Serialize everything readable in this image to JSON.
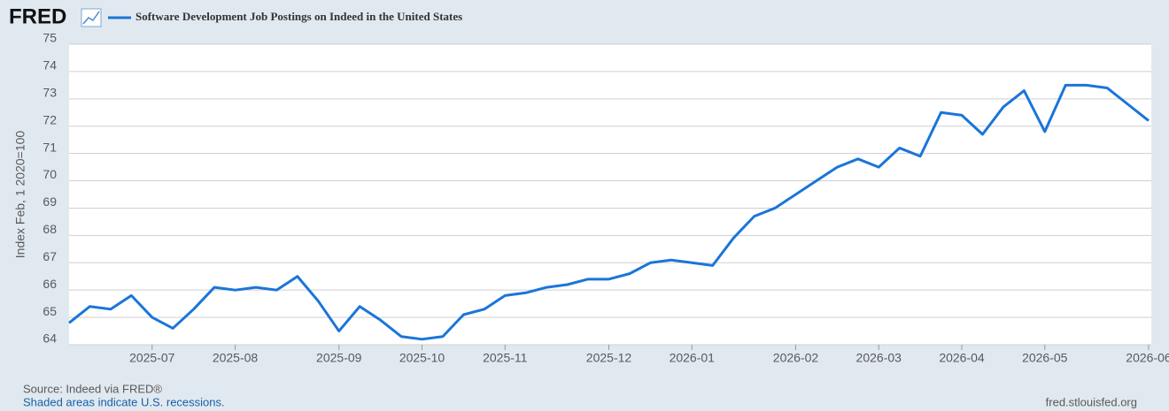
{
  "chart_data": {
    "type": "line",
    "logo": "FRED",
    "ylabel": "Index Feb, 1 2020=100",
    "source": "Source: Indeed via FRED®",
    "note": "Shaded areas indicate U.S. recessions.",
    "url": "fred.stlouisfed.org",
    "categories": [
      null,
      null,
      null,
      null,
      "2025-07",
      null,
      null,
      null,
      "2025-08",
      null,
      null,
      null,
      null,
      "2025-09",
      null,
      null,
      null,
      "2025-10",
      null,
      null,
      null,
      "2025-11",
      null,
      null,
      null,
      null,
      "2025-12",
      null,
      null,
      null,
      "2026-01",
      null,
      null,
      null,
      null,
      "2026-02",
      null,
      null,
      null,
      "2026-03",
      null,
      null,
      null,
      "2026-04",
      null,
      null,
      null,
      "2026-05",
      null,
      null,
      null,
      null,
      "2026-06"
    ],
    "series": [
      {
        "name": "Software Development Job Postings on Indeed in the United States",
        "color": "#1a75d9",
        "values": [
          64.8,
          65.4,
          65.3,
          65.8,
          65.0,
          64.6,
          65.3,
          66.1,
          66.0,
          66.1,
          66.0,
          66.5,
          65.6,
          64.5,
          65.4,
          64.9,
          64.3,
          64.2,
          64.3,
          65.1,
          65.3,
          65.8,
          65.9,
          66.1,
          66.2,
          66.4,
          66.4,
          66.6,
          67.0,
          67.1,
          67.0,
          66.9,
          67.9,
          68.7,
          69.0,
          69.5,
          70.0,
          70.5,
          70.8,
          70.5,
          71.2,
          70.9,
          72.5,
          72.4,
          71.7,
          72.7,
          73.3,
          71.8,
          73.5,
          73.5,
          73.4,
          72.8,
          72.2
        ]
      }
    ],
    "ylim": [
      64,
      75
    ],
    "yticks": [
      64,
      65,
      66,
      67,
      68,
      69,
      70,
      71,
      72,
      73,
      74,
      75
    ],
    "grid": true
  }
}
